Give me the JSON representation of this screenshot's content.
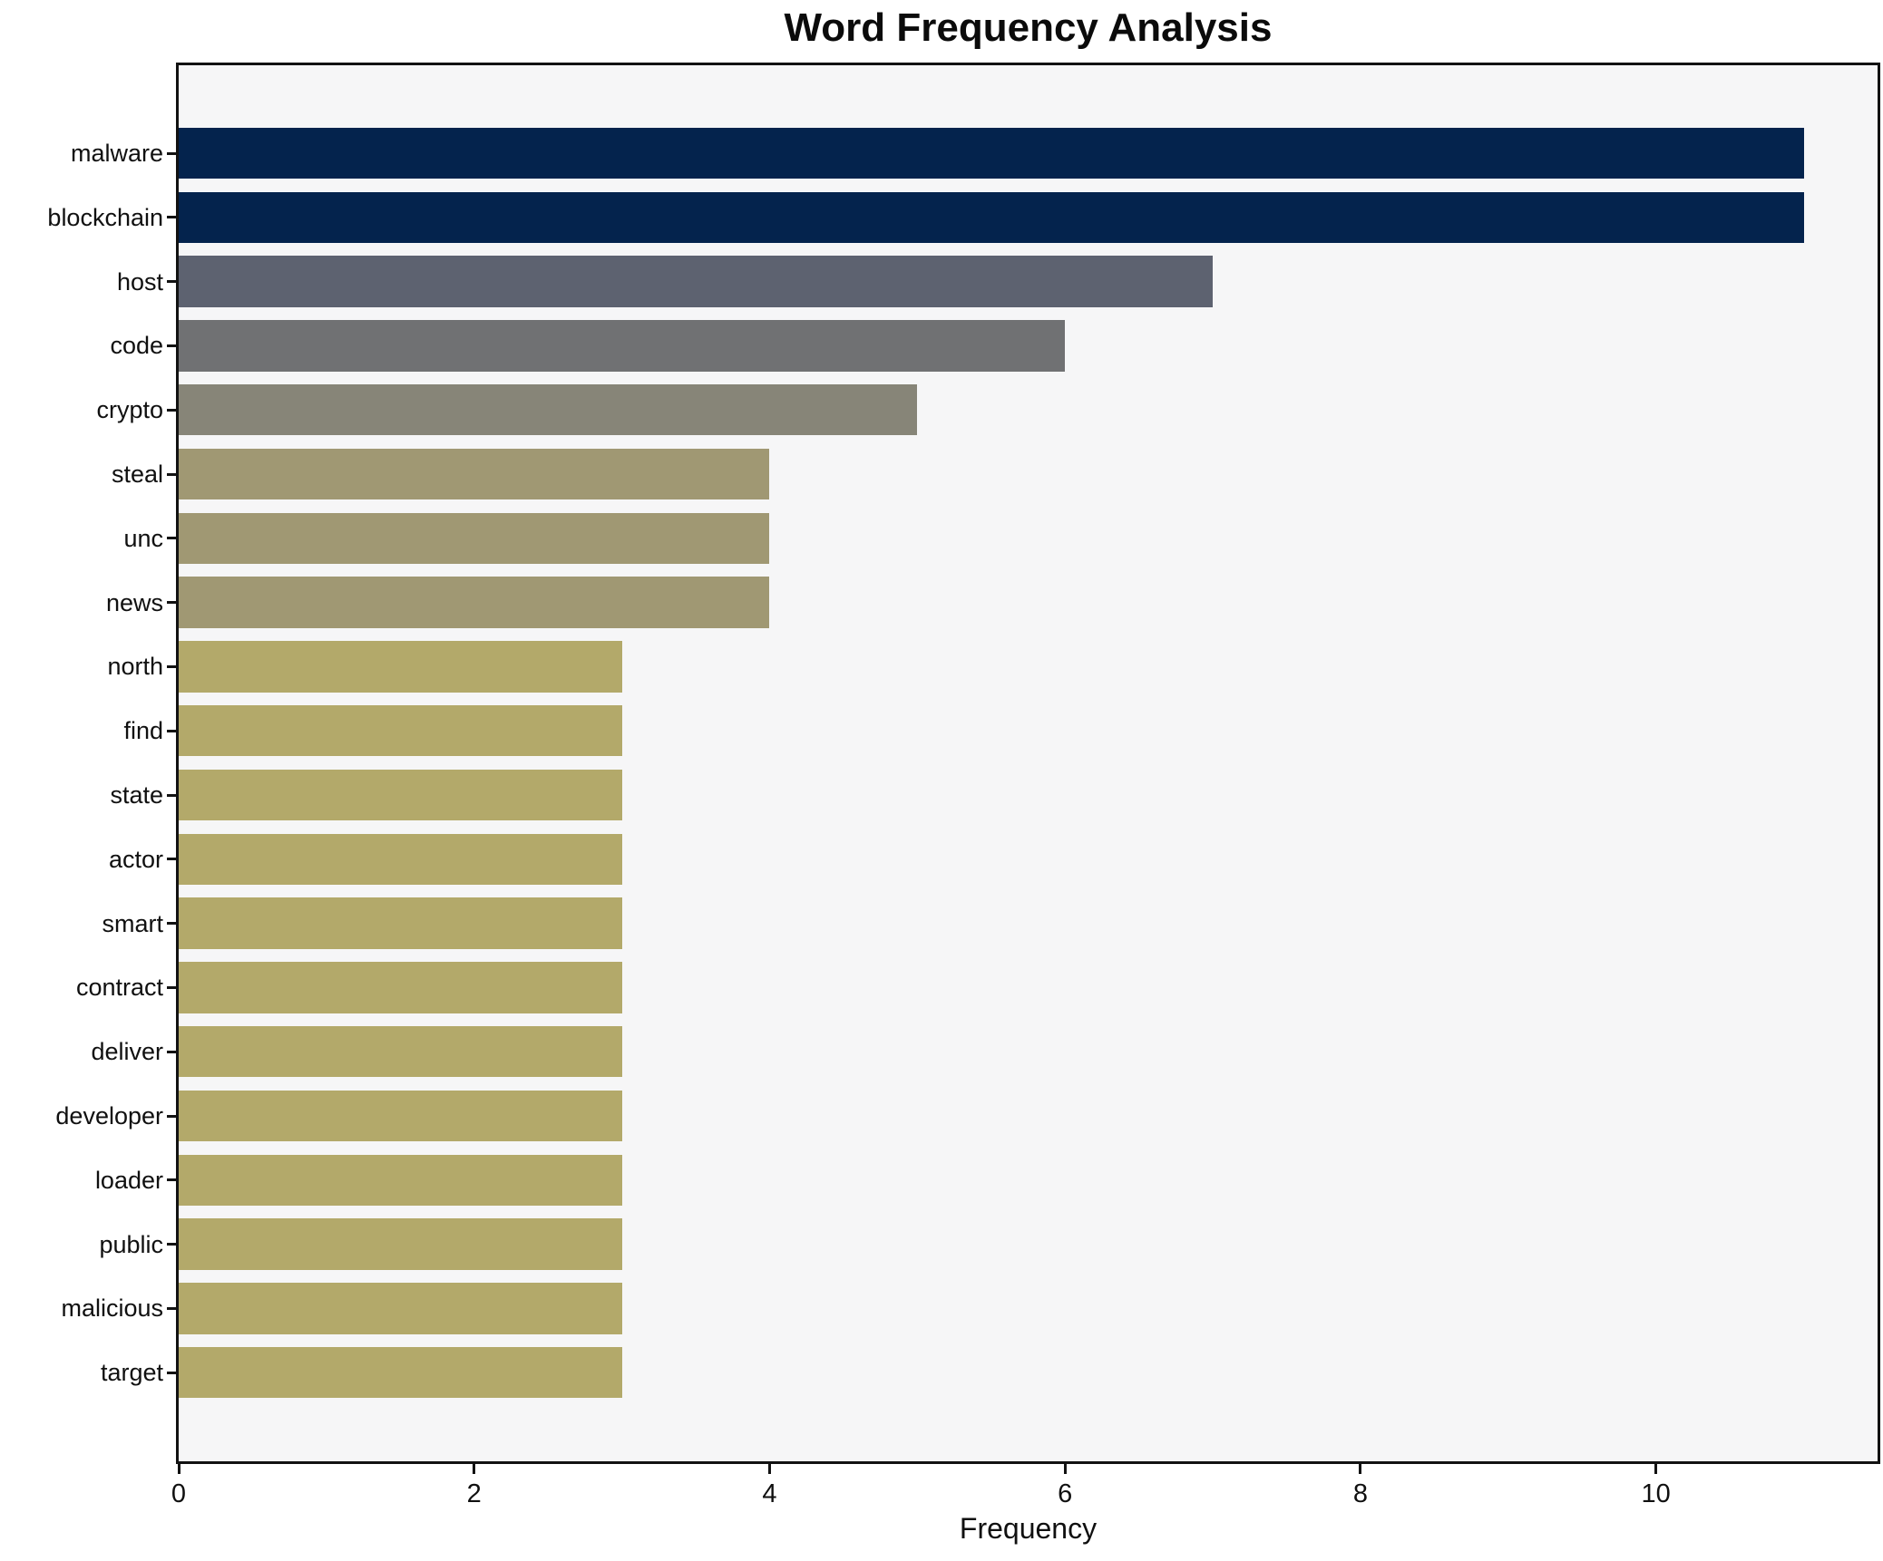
{
  "chart_data": {
    "type": "bar",
    "orientation": "horizontal",
    "title": "Word Frequency Analysis",
    "xlabel": "Frequency",
    "ylabel": "",
    "categories": [
      "malware",
      "blockchain",
      "host",
      "code",
      "crypto",
      "steal",
      "unc",
      "news",
      "north",
      "find",
      "state",
      "actor",
      "smart",
      "contract",
      "deliver",
      "developer",
      "loader",
      "public",
      "malicious",
      "target"
    ],
    "values": [
      11,
      11,
      7,
      6,
      5,
      4,
      4,
      4,
      3,
      3,
      3,
      3,
      3,
      3,
      3,
      3,
      3,
      3,
      3,
      3
    ],
    "bar_colors": [
      "#04234d",
      "#04234d",
      "#5d6270",
      "#707173",
      "#878578",
      "#a09873",
      "#a09873",
      "#a09873",
      "#b3a96a",
      "#b3a96a",
      "#b3a96a",
      "#b3a96a",
      "#b3a96a",
      "#b3a96a",
      "#b3a96a",
      "#b3a96a",
      "#b3a96a",
      "#b3a96a",
      "#b3a96a",
      "#b3a96a"
    ],
    "xlim": [
      0,
      11.5
    ],
    "xticks": [
      0,
      2,
      4,
      6,
      8,
      10
    ],
    "grid": false,
    "legend_position": "none",
    "colors": {
      "plot_background": "#f6f6f7",
      "figure_background": "#ffffff",
      "axis": "#121212",
      "text": "#101010"
    }
  }
}
